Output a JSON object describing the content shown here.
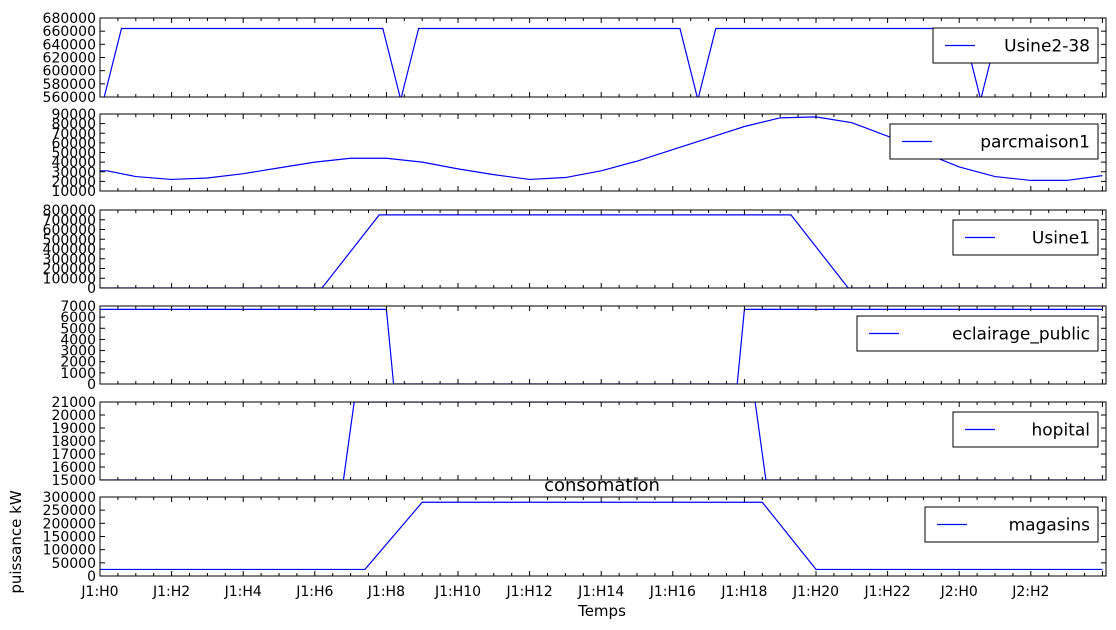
{
  "figure": {
    "title": "consomation",
    "xlabel": "Temps",
    "ylabel": "puissance kW",
    "line_color": "#0000ff",
    "x_ticks": [
      {
        "x": 0,
        "label": "J1:H0"
      },
      {
        "x": 2,
        "label": "J1:H2"
      },
      {
        "x": 4,
        "label": "J1:H4"
      },
      {
        "x": 6,
        "label": "J1:H6"
      },
      {
        "x": 8,
        "label": "J1:H8"
      },
      {
        "x": 10,
        "label": "J1:H10"
      },
      {
        "x": 12,
        "label": "J1:H12"
      },
      {
        "x": 14,
        "label": "J1:H14"
      },
      {
        "x": 16,
        "label": "J1:H16"
      },
      {
        "x": 18,
        "label": "J1:H18"
      },
      {
        "x": 20,
        "label": "J1:H20"
      },
      {
        "x": 22,
        "label": "J1:H22"
      },
      {
        "x": 24,
        "label": "J2:H0"
      },
      {
        "x": 26,
        "label": "J2:H2"
      }
    ]
  },
  "chart_data": [
    {
      "type": "line",
      "series": [
        {
          "name": "Usine2-38",
          "x": [
            0,
            0.1,
            0.6,
            7.9,
            8.4,
            8.9,
            16.2,
            16.7,
            17.2,
            24.1,
            24.6,
            25.1
          ],
          "y": [
            556000,
            556000,
            664000,
            664000,
            556000,
            664000,
            664000,
            556000,
            664000,
            664000,
            556000,
            664000
          ]
        }
      ],
      "ylim": [
        560000,
        680000
      ],
      "yticks": [
        "560000",
        "580000",
        "600000",
        "620000",
        "640000",
        "660000",
        "680000"
      ],
      "legend": "upper right"
    },
    {
      "type": "line",
      "series": [
        {
          "name": "parcmaison1",
          "x": [
            0,
            0.2,
            1,
            2,
            3,
            4,
            5,
            6,
            7,
            8,
            9,
            10,
            11,
            12,
            13,
            14,
            15,
            16,
            17,
            18,
            19,
            20,
            21,
            22,
            23,
            24,
            25,
            26,
            27,
            28
          ],
          "y": [
            31000,
            31000,
            25000,
            22000,
            23500,
            28000,
            34000,
            40000,
            44000,
            44000,
            40000,
            33000,
            27000,
            22000,
            24000,
            31000,
            41000,
            53000,
            65000,
            77000,
            86000,
            87000,
            81000,
            67000,
            50000,
            35000,
            25000,
            21000,
            21000,
            26000
          ]
        }
      ],
      "ylim": [
        10000,
        90000
      ],
      "yticks": [
        "10000",
        "20000",
        "30000",
        "40000",
        "50000",
        "60000",
        "70000",
        "80000",
        "90000"
      ],
      "legend": "upper right"
    },
    {
      "type": "line",
      "series": [
        {
          "name": "Usine1",
          "x": [
            0,
            6.2,
            7.8,
            19.3,
            20.9,
            28
          ],
          "y": [
            0,
            0,
            750000,
            750000,
            0,
            0
          ]
        }
      ],
      "ylim": [
        0,
        800000
      ],
      "yticks": [
        "0",
        "100000",
        "200000",
        "300000",
        "400000",
        "500000",
        "600000",
        "700000",
        "800000"
      ],
      "legend": "upper right"
    },
    {
      "type": "line",
      "series": [
        {
          "name": "eclairage_public",
          "x": [
            0,
            8,
            8.2,
            17.8,
            18,
            28
          ],
          "y": [
            6700,
            6700,
            0,
            0,
            6700,
            6700
          ]
        }
      ],
      "ylim": [
        0,
        7000
      ],
      "yticks": [
        "0",
        "1000",
        "2000",
        "3000",
        "4000",
        "5000",
        "6000",
        "7000"
      ],
      "legend": "upper right"
    },
    {
      "type": "line",
      "series": [
        {
          "name": "hopital",
          "x": [
            0,
            6.8,
            7.1,
            18.3,
            18.6,
            28
          ],
          "y": [
            15000,
            15000,
            21000,
            21000,
            15000,
            15000
          ]
        }
      ],
      "ylim": [
        15000,
        21000
      ],
      "yticks": [
        "15000",
        "16000",
        "17000",
        "18000",
        "19000",
        "20000",
        "21000"
      ],
      "legend": "upper right"
    },
    {
      "type": "line",
      "series": [
        {
          "name": "magasins",
          "x": [
            0,
            7.4,
            9,
            18.5,
            20,
            28
          ],
          "y": [
            25000,
            25000,
            280000,
            280000,
            25000,
            25000
          ]
        }
      ],
      "ylim": [
        0,
        300000
      ],
      "yticks": [
        "0",
        "50000",
        "100000",
        "150000",
        "200000",
        "250000",
        "300000"
      ],
      "legend": "upper right"
    }
  ]
}
